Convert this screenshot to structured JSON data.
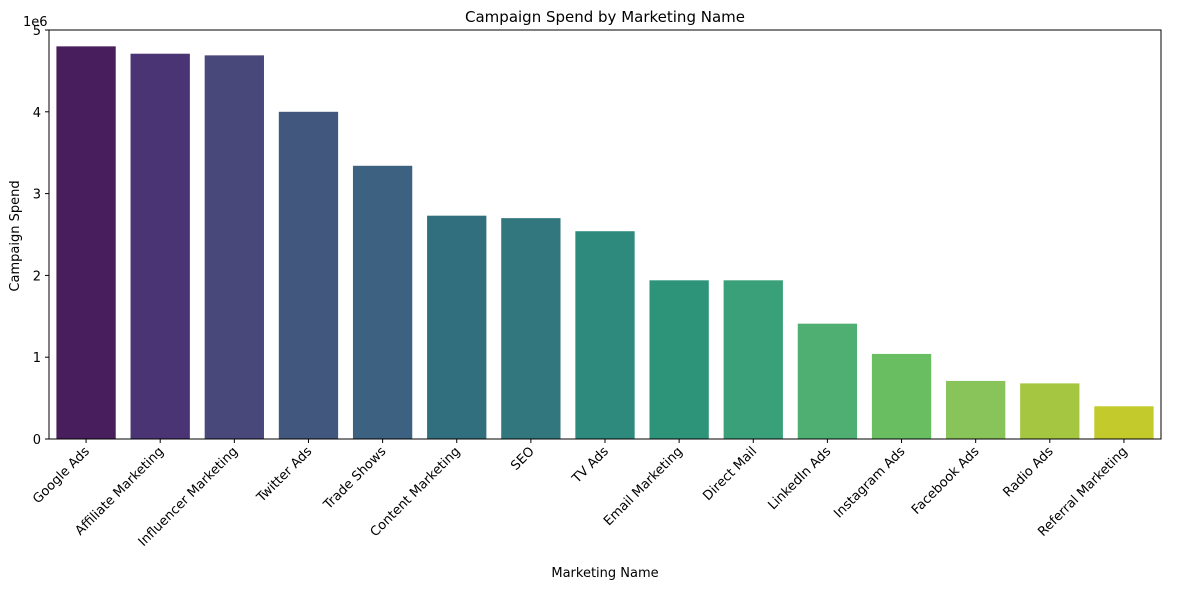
{
  "chart_data": {
    "type": "bar",
    "title": "Campaign Spend by Marketing Name",
    "xlabel": "Marketing Name",
    "ylabel": "Campaign Spend",
    "y_scale_label": "1e6",
    "ylim": [
      0,
      5.0
    ],
    "y_ticks": [
      "0",
      "1",
      "2",
      "3",
      "4",
      "5"
    ],
    "grid": false,
    "categories": [
      "Google Ads",
      "Affiliate Marketing",
      "Influencer Marketing",
      "Twitter Ads",
      "Trade Shows",
      "Content Marketing",
      "SEO",
      "TV Ads",
      "Email Marketing",
      "Direct Mail",
      "LinkedIn Ads",
      "Instagram Ads",
      "Facebook Ads",
      "Radio Ads",
      "Referral Marketing"
    ],
    "values": [
      4.8,
      4.71,
      4.69,
      4.0,
      3.34,
      2.73,
      2.7,
      2.54,
      1.94,
      1.94,
      1.41,
      1.04,
      0.71,
      0.68,
      0.4
    ],
    "colors": [
      "#481f5c",
      "#4a3473",
      "#49487a",
      "#41577d",
      "#3c6181",
      "#326f7e",
      "#32777d",
      "#2e8a7d",
      "#2d9479",
      "#3aa07a",
      "#4faf72",
      "#68be60",
      "#88c45a",
      "#a4c641",
      "#c3ca2b"
    ]
  }
}
